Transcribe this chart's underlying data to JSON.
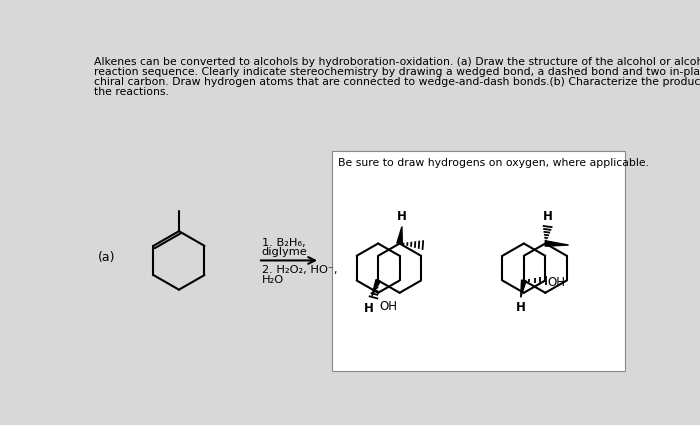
{
  "bg_color": "#d8d8d8",
  "white_box_color": "#ffffff",
  "text_color": "#000000",
  "title_line1": "Alkenes can be converted to alcohols by hydroboration-oxidation. (a) Draw the structure of the alcohol or alcohols formed in the",
  "title_line2": "reaction sequence. Clearly indicate stereochemistry by drawing a wedged bond, a dashed bond and two in-plane bonds per each",
  "title_line3": "chiral carbon. Draw hydrogen atoms that are connected to wedge-and-dash bonds.(b) Characterize the product or products of",
  "title_line4": "the reactions.",
  "box_note": "Be sure to draw hydrogens on oxygen, where applicable.",
  "label_a": "(a)",
  "reagent_line1": "1. B₂H₆,",
  "reagent_line2": "diglyme",
  "reagent_line3": "2. H₂O₂, HO⁻,",
  "reagent_line4": "H₂O"
}
